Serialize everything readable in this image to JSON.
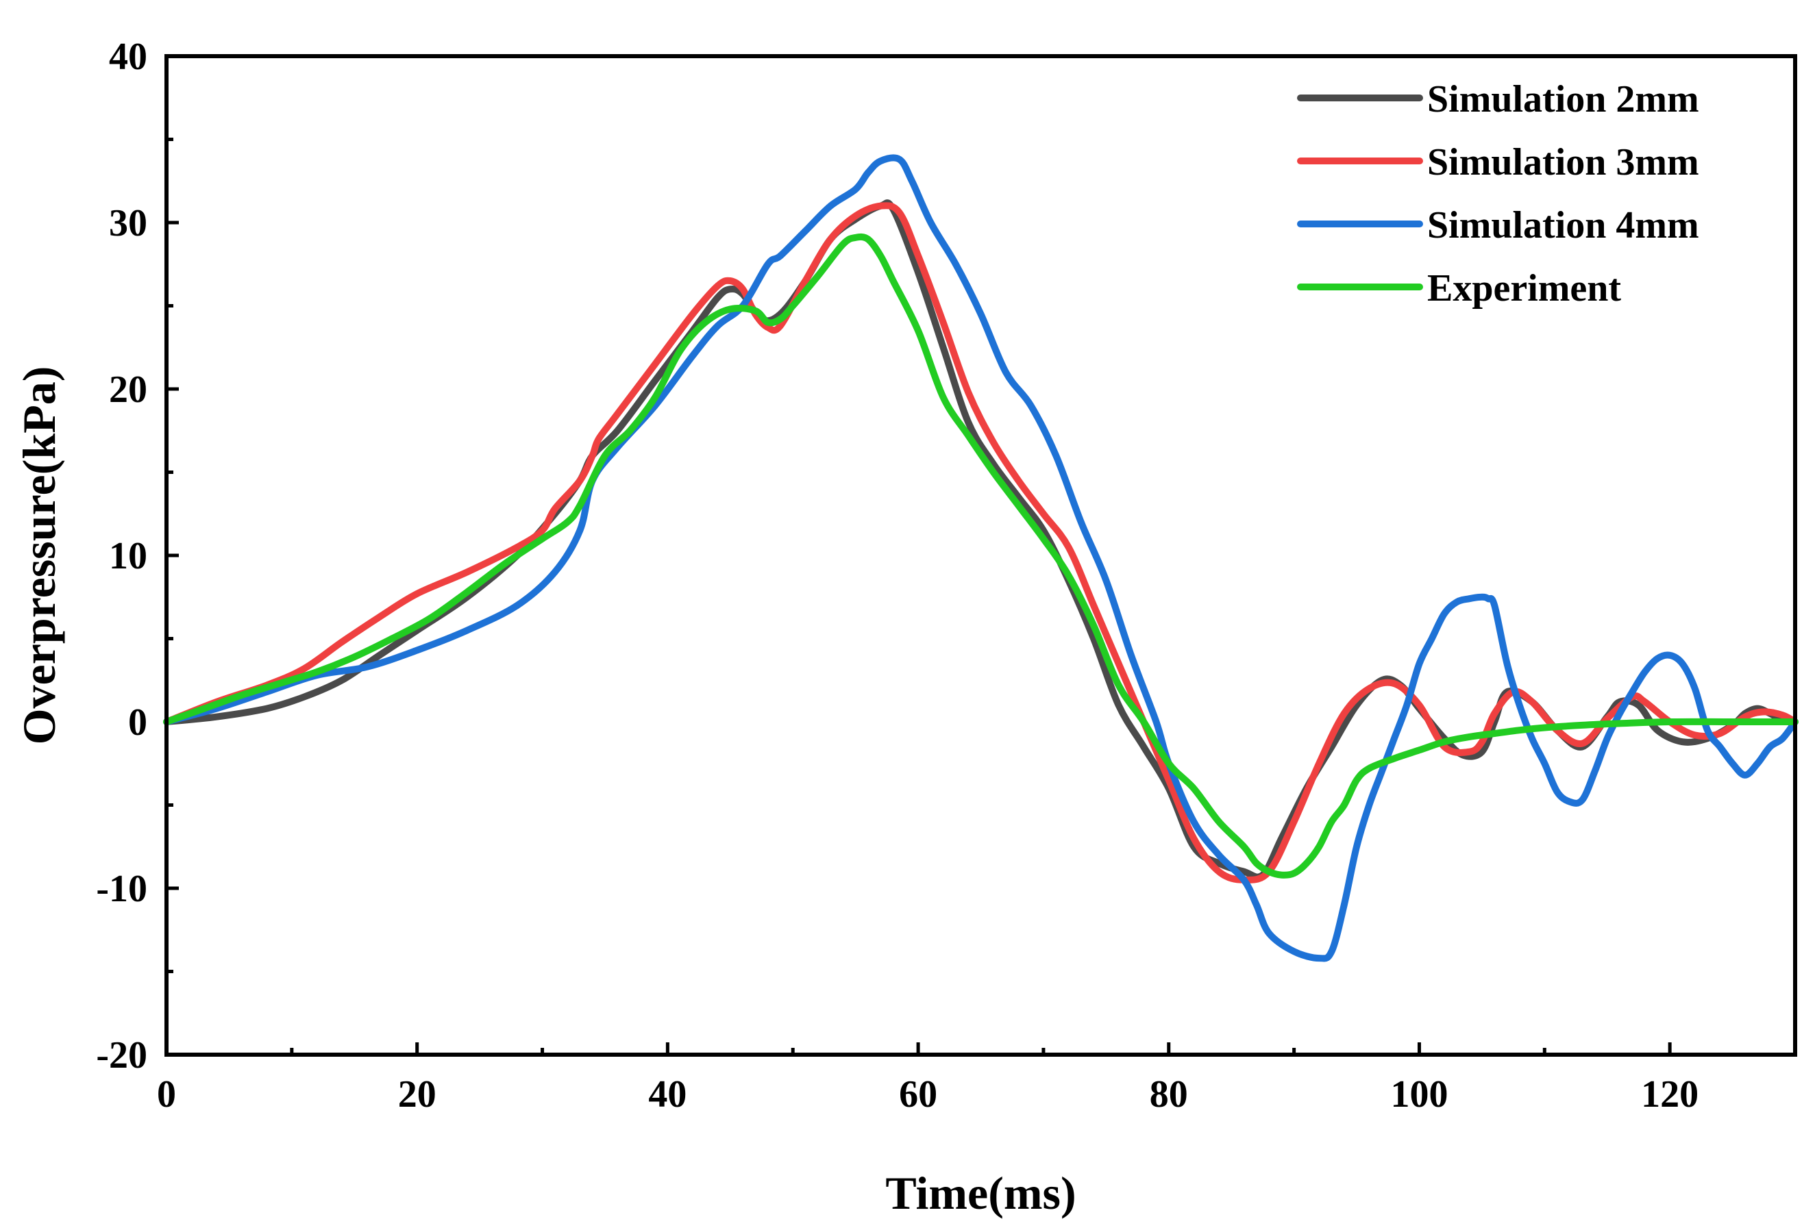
{
  "chart_data": {
    "type": "line",
    "title": "",
    "xlabel": "Time(ms)",
    "ylabel": "Overpressure(kPa)",
    "xlim": [
      0,
      130
    ],
    "ylim": [
      -20,
      40
    ],
    "xticks": [
      0,
      20,
      40,
      60,
      80,
      100,
      120
    ],
    "yticks": [
      -20,
      -10,
      0,
      10,
      20,
      30,
      40
    ],
    "xtick_labels": [
      "0",
      "20",
      "40",
      "60",
      "80",
      "100",
      "120"
    ],
    "ytick_labels": [
      "-20",
      "-10",
      "0",
      "10",
      "20",
      "30",
      "40"
    ],
    "grid": false,
    "legend_position": "top-right",
    "series": [
      {
        "name": "Simulation 2mm",
        "color": "#4a4a4a",
        "x": [
          0,
          4,
          8,
          11,
          14,
          17,
          20,
          24,
          28,
          31,
          33,
          34,
          36,
          39,
          42,
          44,
          45,
          46,
          47.5,
          49,
          51,
          53,
          55,
          57,
          58,
          60,
          62,
          64,
          66,
          68,
          70,
          72,
          74,
          76,
          78,
          80,
          82,
          84,
          86,
          87.5,
          89,
          91,
          93,
          95,
          97,
          98.5,
          100,
          102,
          103.5,
          105,
          106,
          107,
          109,
          111,
          113,
          115,
          116,
          117.5,
          119,
          121,
          123,
          125,
          126,
          127,
          128,
          129,
          130
        ],
        "y": [
          0,
          0.3,
          0.8,
          1.5,
          2.5,
          4,
          5.5,
          7.5,
          10,
          12.5,
          14.5,
          16,
          17.5,
          20.5,
          23.5,
          25.5,
          26,
          25.7,
          24.2,
          24.5,
          26.5,
          29,
          30.2,
          31,
          30.8,
          27,
          22.5,
          18,
          15.5,
          13.5,
          11.5,
          8.5,
          5,
          1,
          -1.5,
          -4,
          -7.5,
          -8.5,
          -9,
          -9.2,
          -7,
          -4,
          -1.5,
          1,
          2.5,
          2.2,
          0.8,
          -1,
          -2,
          -1.8,
          0,
          1.8,
          1.2,
          -0.5,
          -1.5,
          0.3,
          1.2,
          1,
          -0.5,
          -1.2,
          -1,
          -0.2,
          0.5,
          0.8,
          0.5,
          0.1,
          0
        ]
      },
      {
        "name": "Simulation 3mm",
        "color": "#ef4040",
        "x": [
          0,
          4,
          8,
          11,
          14,
          17,
          20,
          24,
          28,
          30,
          31,
          33,
          34,
          34.5,
          36,
          39,
          42,
          44,
          45,
          46,
          47,
          48,
          49,
          51,
          53,
          55,
          57,
          58.5,
          60,
          62,
          64,
          66,
          68,
          70,
          72,
          74,
          76,
          78,
          80,
          82,
          84,
          86,
          88,
          90,
          92,
          94,
          96,
          98,
          100,
          102,
          104,
          105,
          106,
          107.5,
          109,
          111,
          113,
          115,
          117,
          118,
          120,
          122,
          124,
          126,
          127.5,
          129,
          130
        ],
        "y": [
          0,
          1.2,
          2.2,
          3.2,
          4.8,
          6.3,
          7.7,
          9,
          10.5,
          11.5,
          12.8,
          14.5,
          16,
          17,
          18.5,
          21.5,
          24.5,
          26.2,
          26.5,
          26,
          24.5,
          23.7,
          23.8,
          26.5,
          29,
          30.4,
          31,
          30.6,
          28,
          24,
          19.8,
          16.8,
          14.5,
          12.5,
          10.5,
          7,
          3.5,
          0,
          -3.5,
          -7,
          -9,
          -9.5,
          -9,
          -6,
          -2.5,
          0.5,
          2,
          2.3,
          1,
          -1.5,
          -1.8,
          -1.2,
          0.5,
          1.8,
          1.2,
          -0.5,
          -1.3,
          0.2,
          1.5,
          1.2,
          0,
          -0.8,
          -0.7,
          0.3,
          0.6,
          0.4,
          0
        ]
      },
      {
        "name": "Simulation 4mm",
        "color": "#1e72d6",
        "x": [
          0,
          4,
          8,
          12,
          16,
          20,
          24,
          28,
          31,
          33,
          34,
          36,
          39,
          42,
          44,
          46,
          48,
          49,
          51,
          53,
          55,
          56,
          57,
          58.5,
          59.5,
          61,
          63,
          65,
          67,
          69,
          71,
          73,
          75,
          77,
          79,
          80,
          82,
          84,
          86,
          87,
          88,
          90,
          92,
          93,
          94,
          95,
          96,
          97,
          98,
          99,
          100,
          101,
          102,
          103,
          104,
          105,
          105.5,
          106,
          107,
          108,
          109,
          110,
          111,
          112,
          113,
          114,
          115,
          116,
          117,
          118,
          119,
          120,
          121,
          122,
          123,
          124,
          125,
          126,
          127,
          128,
          129,
          130
        ],
        "y": [
          0,
          0.8,
          1.8,
          2.8,
          3.3,
          4.3,
          5.5,
          7,
          9,
          11.5,
          14.5,
          16.5,
          19,
          22,
          23.8,
          25,
          27.5,
          28,
          29.5,
          31,
          32,
          33,
          33.7,
          33.8,
          32.5,
          30,
          27.5,
          24.5,
          21,
          19,
          16,
          12,
          8.5,
          4,
          0,
          -2.5,
          -6,
          -8,
          -9.5,
          -11,
          -12.7,
          -13.8,
          -14.2,
          -13.8,
          -11,
          -7.5,
          -5,
          -3,
          -1,
          1,
          3.5,
          5,
          6.5,
          7.2,
          7.4,
          7.5,
          7.4,
          7,
          3.5,
          1,
          -1,
          -2.5,
          -4.2,
          -4.8,
          -4.7,
          -3,
          -1,
          0.5,
          1.8,
          3,
          3.8,
          4,
          3.5,
          2,
          -0.5,
          -1.5,
          -2.5,
          -3.2,
          -2.5,
          -1.5,
          -1,
          0
        ]
      },
      {
        "name": "Experiment",
        "color": "#22cc22",
        "x": [
          0,
          3,
          6,
          9,
          12,
          15,
          18,
          21,
          24,
          27,
          30,
          32,
          33,
          35,
          37,
          39,
          41,
          43,
          45,
          47,
          48,
          49,
          50,
          52,
          54,
          55,
          56,
          57,
          58,
          60,
          62,
          64,
          66,
          68,
          70,
          72,
          74,
          76,
          78,
          80,
          82,
          84,
          86,
          87,
          88,
          89,
          90,
          91,
          92,
          93,
          94,
          95,
          96,
          98,
          100,
          102,
          104,
          106,
          108,
          110,
          113,
          116,
          120,
          125,
          130
        ],
        "y": [
          0,
          0.8,
          1.6,
          2.3,
          3,
          3.9,
          5,
          6.2,
          7.8,
          9.5,
          11,
          12,
          13,
          16,
          17.5,
          19.5,
          22.3,
          24,
          24.8,
          24.7,
          24,
          24.2,
          25,
          26.8,
          28.7,
          29.1,
          29,
          28,
          26.5,
          23.5,
          19.5,
          17.2,
          15,
          13,
          11,
          8.8,
          5.8,
          2.2,
          0,
          -2.5,
          -4,
          -6,
          -7.5,
          -8.5,
          -9,
          -9.2,
          -9.1,
          -8.5,
          -7.5,
          -6,
          -5,
          -3.5,
          -2.8,
          -2.2,
          -1.7,
          -1.2,
          -0.9,
          -0.7,
          -0.5,
          -0.35,
          -0.2,
          -0.1,
          0,
          0,
          0
        ]
      }
    ]
  }
}
